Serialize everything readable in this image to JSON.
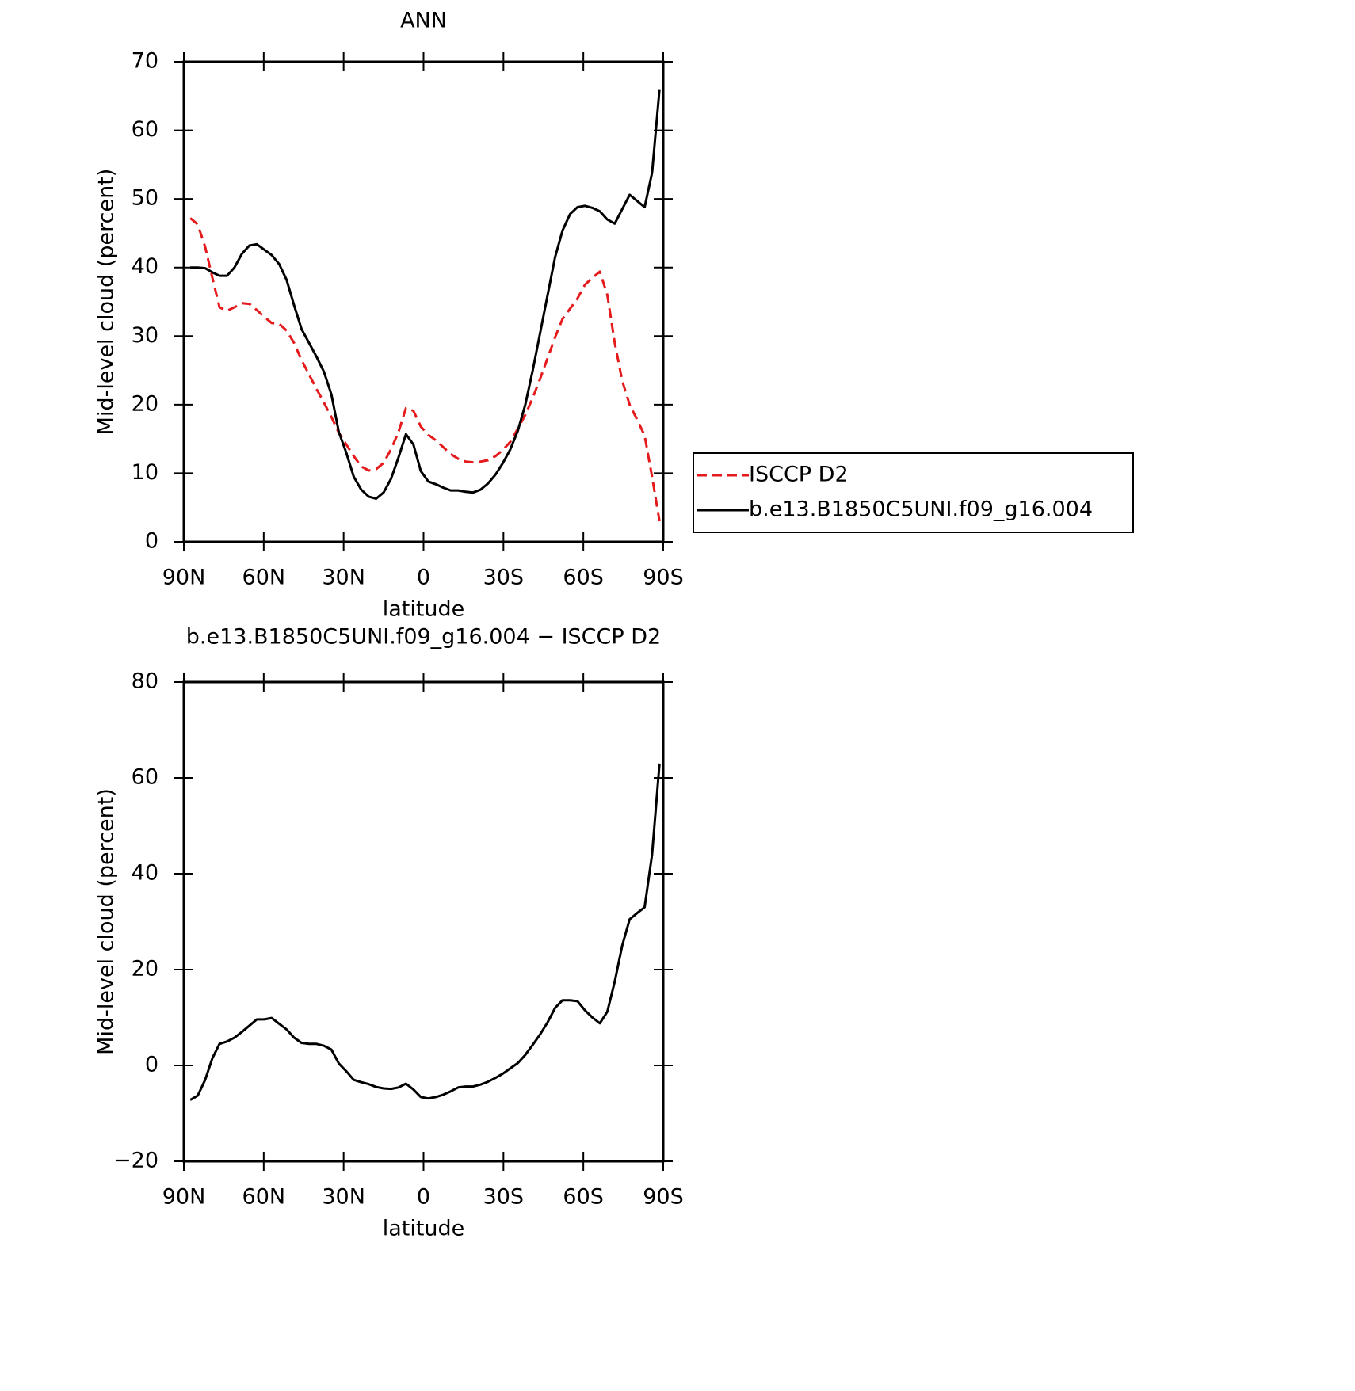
{
  "chart_data": [
    {
      "type": "line",
      "title": "ANN",
      "x_label": "latitude",
      "y_label": "Mid-level cloud (percent)",
      "x": [
        87.6,
        84.8,
        82,
        79.3,
        76.6,
        73.8,
        71,
        68.2,
        65.4,
        62.6,
        59.8,
        57,
        54.2,
        51.4,
        48.6,
        45.8,
        43,
        40.2,
        37.4,
        34.6,
        31.8,
        29,
        26.2,
        23.4,
        20.6,
        17.8,
        15,
        12.2,
        9.4,
        6.6,
        3.8,
        1,
        -1.8,
        -4.6,
        -7.4,
        -10.2,
        -13,
        -15.8,
        -18.6,
        -21.4,
        -24.2,
        -27,
        -29.8,
        -32.6,
        -35.4,
        -38.2,
        -41,
        -43.8,
        -46.6,
        -49.4,
        -52.2,
        -55,
        -57.8,
        -60.6,
        -63.4,
        -66.2,
        -69,
        -71.8,
        -74.6,
        -77.4,
        -80.2,
        -83,
        -85.8,
        -88.6
      ],
      "series": [
        {
          "name": "ISCCP D2",
          "color": "#e41a1c",
          "linestyle": "dashed",
          "values": [
            47.2,
            46.3,
            43,
            38.5,
            34.2,
            33.7,
            34.2,
            34.8,
            34.7,
            33.8,
            32.8,
            31.9,
            31.8,
            30.8,
            29,
            26.5,
            24.4,
            22.3,
            20.3,
            18.2,
            15.9,
            14.2,
            12.5,
            11,
            10.4,
            10.6,
            11.5,
            13.5,
            16,
            19.5,
            19.1,
            16.8,
            15.6,
            14.8,
            13.8,
            12.8,
            12.1,
            11.7,
            11.6,
            11.7,
            11.9,
            12.5,
            13.4,
            14.6,
            16.5,
            18.5,
            21,
            23.8,
            26.8,
            29.8,
            32.5,
            34,
            35.5,
            37.5,
            38.5,
            39.4,
            36,
            29,
            23.5,
            20,
            17.8,
            15.5,
            9.5,
            3
          ]
        },
        {
          "name": "b.e13.B1850C5UNI.f09_g16.004",
          "color": "#000000",
          "linestyle": "solid",
          "values": [
            40,
            40,
            39.9,
            39.3,
            38.8,
            38.8,
            40,
            42,
            43.2,
            43.4,
            42.6,
            41.8,
            40.5,
            38.2,
            34.5,
            31,
            29,
            27,
            24.8,
            21.5,
            16,
            13,
            9.5,
            7.6,
            6.6,
            6.3,
            7.2,
            9.2,
            12.3,
            15.7,
            14.2,
            10.3,
            8.8,
            8.4,
            7.9,
            7.5,
            7.5,
            7.3,
            7.2,
            7.6,
            8.5,
            9.8,
            11.5,
            13.5,
            16.2,
            20,
            25,
            30.5,
            36,
            41.5,
            45.4,
            47.8,
            48.8,
            49,
            48.7,
            48.2,
            47,
            46.4,
            48.5,
            50.6,
            49.7,
            48.8,
            53.8,
            66
          ]
        }
      ],
      "xlim": [
        90,
        -90
      ],
      "xticks": [
        {
          "value": 90,
          "label": "90N"
        },
        {
          "value": 60,
          "label": "60N"
        },
        {
          "value": 30,
          "label": "30N"
        },
        0,
        {
          "value": -30,
          "label": "30S"
        },
        {
          "value": -60,
          "label": "60S"
        },
        {
          "value": -90,
          "label": "90S"
        }
      ],
      "ylim": [
        0,
        70
      ],
      "yticks": [
        0,
        10,
        20,
        30,
        40,
        50,
        60,
        70
      ],
      "legend": "outside-right"
    },
    {
      "type": "line",
      "title": "b.e13.B1850C5UNI.f09_g16.004 − ISCCP D2",
      "x_label": "latitude",
      "y_label": "Mid-level cloud (percent)",
      "x": [
        87.6,
        84.8,
        82,
        79.3,
        76.6,
        73.8,
        71,
        68.2,
        65.4,
        62.6,
        59.8,
        57,
        54.2,
        51.4,
        48.6,
        45.8,
        43,
        40.2,
        37.4,
        34.6,
        31.8,
        29,
        26.2,
        23.4,
        20.6,
        17.8,
        15,
        12.2,
        9.4,
        6.6,
        3.8,
        1,
        -1.8,
        -4.6,
        -7.4,
        -10.2,
        -13,
        -15.8,
        -18.6,
        -21.4,
        -24.2,
        -27,
        -29.8,
        -32.6,
        -35.4,
        -38.2,
        -41,
        -43.8,
        -46.6,
        -49.4,
        -52.2,
        -55,
        -57.8,
        -60.6,
        -63.4,
        -66.2,
        -69,
        -71.8,
        -74.6,
        -77.4,
        -80.2,
        -83,
        -85.8,
        -88.6
      ],
      "series": [
        {
          "color": "#000000",
          "linestyle": "solid",
          "values": [
            -7.2,
            -6.3,
            -3,
            1.5,
            4.5,
            5,
            5.8,
            7,
            8.3,
            9.6,
            9.6,
            9.9,
            8.7,
            7.5,
            5.8,
            4.7,
            4.5,
            4.5,
            4.1,
            3.3,
            0.4,
            -1.2,
            -3,
            -3.5,
            -3.9,
            -4.5,
            -4.8,
            -4.9,
            -4.6,
            -3.8,
            -5,
            -6.6,
            -6.9,
            -6.6,
            -6.1,
            -5.4,
            -4.6,
            -4.4,
            -4.4,
            -4,
            -3.4,
            -2.6,
            -1.7,
            -0.6,
            0.5,
            2.2,
            4.3,
            6.5,
            9,
            12,
            13.6,
            13.6,
            13.4,
            11.5,
            10,
            8.8,
            11.2,
            17.5,
            25,
            30.5,
            31.8,
            33,
            44,
            63
          ]
        }
      ],
      "xlim": [
        90,
        -90
      ],
      "xticks": [
        {
          "value": 90,
          "label": "90N"
        },
        {
          "value": 60,
          "label": "60N"
        },
        {
          "value": 30,
          "label": "30N"
        },
        0,
        {
          "value": -30,
          "label": "30S"
        },
        {
          "value": -60,
          "label": "60S"
        },
        {
          "value": -90,
          "label": "90S"
        }
      ],
      "ylim": [
        -20,
        80
      ],
      "yticks": [
        {
          "value": -20,
          "label": "−20"
        },
        0,
        20,
        40,
        60,
        80
      ]
    }
  ]
}
